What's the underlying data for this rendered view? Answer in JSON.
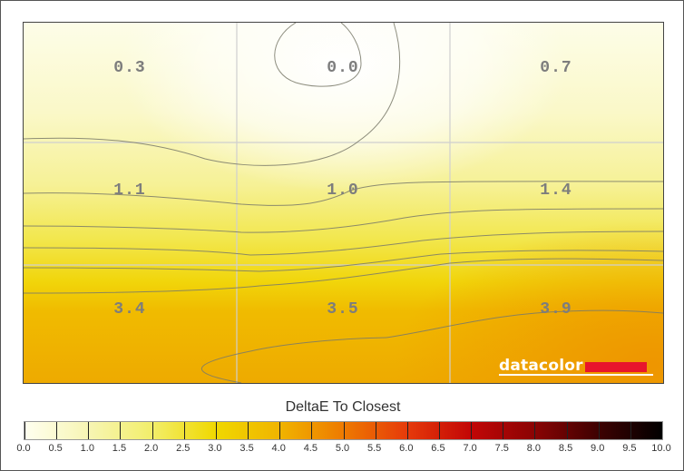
{
  "chart_data": {
    "type": "heatmap",
    "title": "DeltaE To Closest",
    "grid": {
      "rows": 3,
      "cols": 3
    },
    "values": [
      [
        0.3,
        0.0,
        0.7
      ],
      [
        1.1,
        1.0,
        1.4
      ],
      [
        3.4,
        3.5,
        3.9
      ]
    ],
    "cell_labels": [
      "0.3",
      "0.0",
      "0.7",
      "1.1",
      "1.0",
      "1.4",
      "3.4",
      "3.5",
      "3.9"
    ],
    "colorbar": {
      "title": "DeltaE To Closest",
      "range": [
        0.0,
        10.0
      ],
      "step": 0.5,
      "ticks": [
        "0.0",
        "0.5",
        "1.0",
        "1.5",
        "2.0",
        "2.5",
        "3.0",
        "3.5",
        "4.0",
        "4.5",
        "5.0",
        "5.5",
        "6.0",
        "6.5",
        "7.0",
        "7.5",
        "8.0",
        "8.5",
        "9.0",
        "9.5",
        "10.0"
      ],
      "colors": [
        "#fffff0",
        "#f7f5b4",
        "#f2ee6a",
        "#f0d800",
        "#f0b400",
        "#ee7a00",
        "#e63a0a",
        "#c20606",
        "#8a0404",
        "#3e0202",
        "#000000"
      ]
    },
    "contours": "contour lines at 0.5 DeltaE intervals",
    "xlabel": "",
    "ylabel": ""
  },
  "branding": {
    "logo_text": "datacolor",
    "logo_accent": "#e8152c"
  }
}
